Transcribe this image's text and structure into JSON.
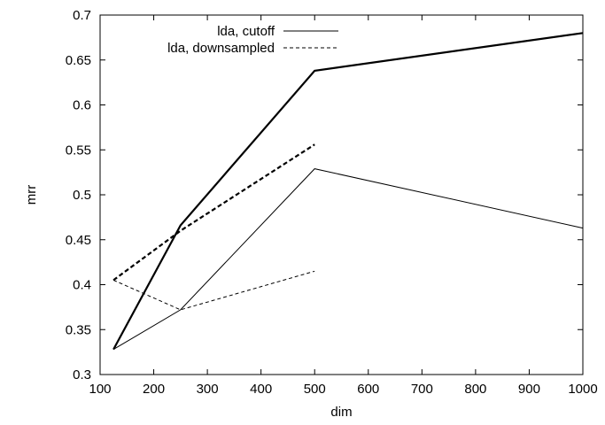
{
  "chart_data": {
    "type": "line",
    "xlabel": "dim",
    "ylabel": "mrr",
    "xlim": [
      100,
      1000
    ],
    "ylim": [
      0.3,
      0.7
    ],
    "xticks": [
      100,
      200,
      300,
      400,
      500,
      600,
      700,
      800,
      900,
      1000
    ],
    "yticks": [
      0.3,
      0.35,
      0.4,
      0.45,
      0.5,
      0.55,
      0.6,
      0.65,
      0.7
    ],
    "xtick_labels": [
      "100",
      "200",
      "300",
      "400",
      "500",
      "600",
      "700",
      "800",
      "900",
      "1000"
    ],
    "ytick_labels": [
      "0.3",
      "0.35",
      "0.4",
      "0.45",
      "0.5",
      "0.55",
      "0.6",
      "0.65",
      "0.7"
    ],
    "grid": false,
    "legend_position": "top-center",
    "legend": [
      {
        "label": "lda, cutoff",
        "style": "solid"
      },
      {
        "label": "lda, downsampled",
        "style": "dashed"
      }
    ],
    "series": [
      {
        "legend_index": 0,
        "style": "solid",
        "weight": "thick",
        "x": [
          125,
          250,
          500,
          1000
        ],
        "y": [
          0.328,
          0.466,
          0.638,
          0.68
        ]
      },
      {
        "legend_index": 0,
        "style": "solid",
        "weight": "thin",
        "x": [
          125,
          250,
          500,
          1000
        ],
        "y": [
          0.328,
          0.372,
          0.529,
          0.463
        ]
      },
      {
        "legend_index": 1,
        "style": "dashed",
        "weight": "thick",
        "x": [
          125,
          250,
          500
        ],
        "y": [
          0.405,
          0.46,
          0.556
        ]
      },
      {
        "legend_index": 1,
        "style": "dashed",
        "weight": "thin",
        "x": [
          125,
          250,
          500
        ],
        "y": [
          0.405,
          0.372,
          0.415
        ]
      }
    ]
  }
}
